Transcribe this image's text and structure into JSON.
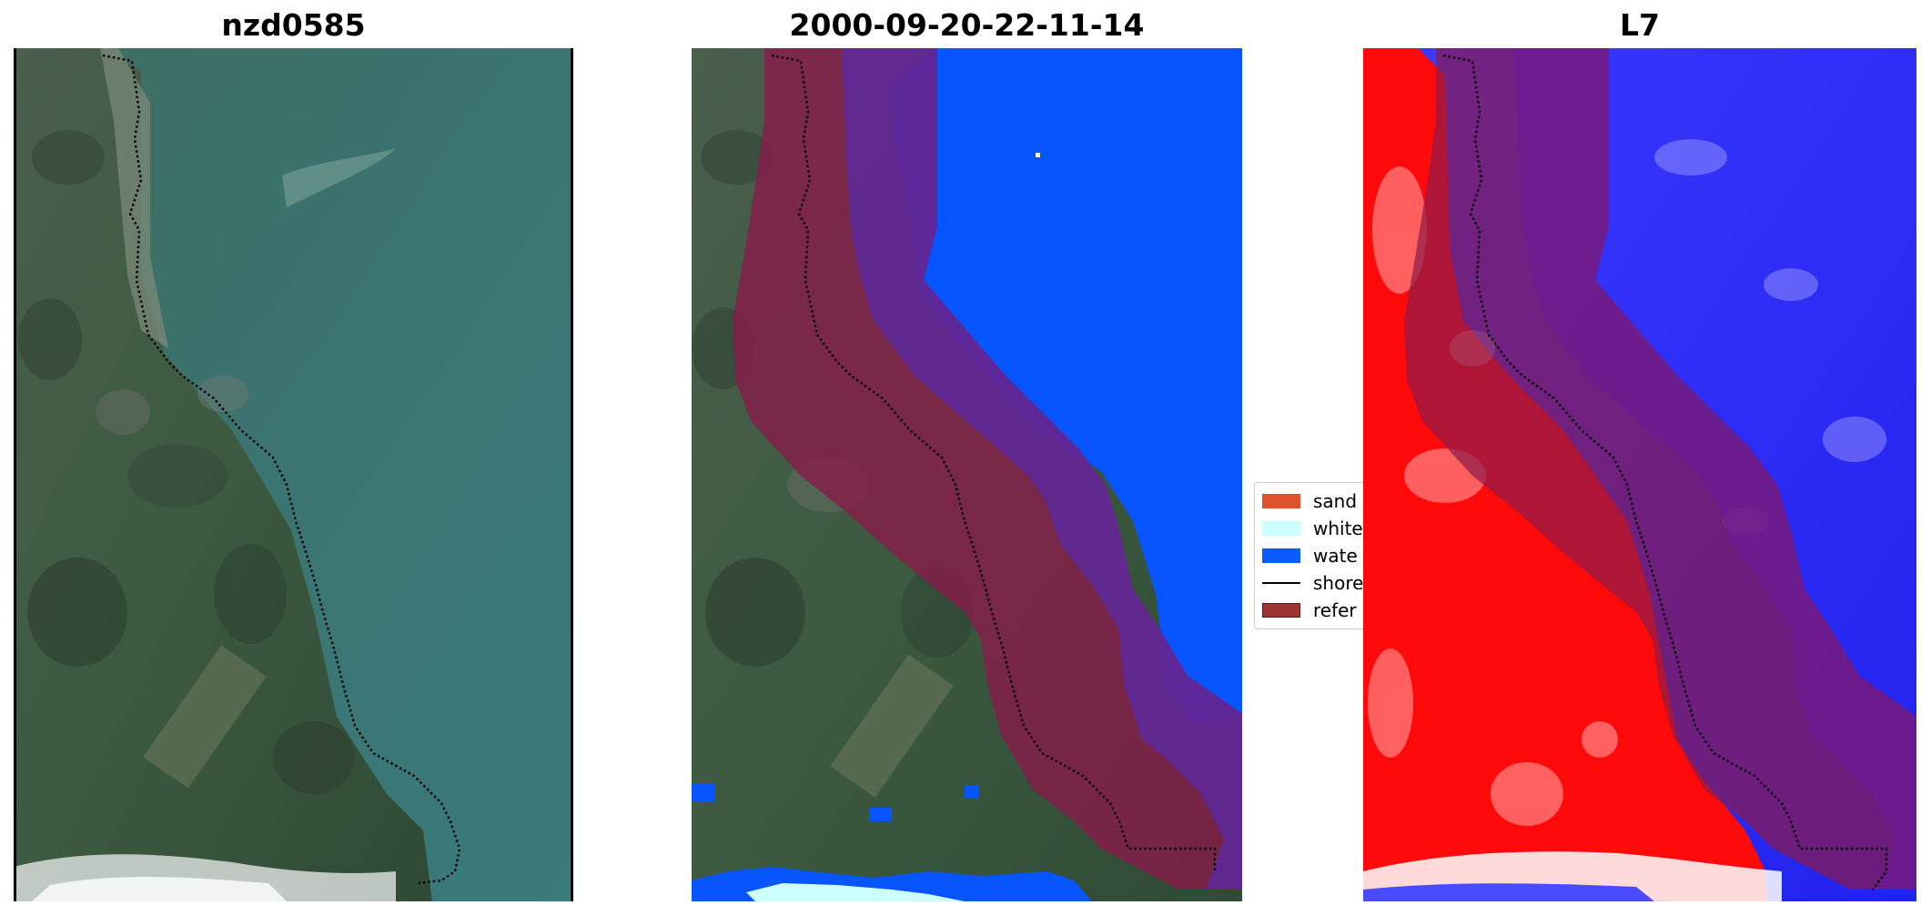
{
  "panels": [
    {
      "title": "nzd0585"
    },
    {
      "title": "2000-09-20-22-11-14"
    },
    {
      "title": "L7"
    }
  ],
  "legend": {
    "items": [
      {
        "label": "sand",
        "kind": "patch",
        "color": "#e0522e"
      },
      {
        "label": "white",
        "kind": "patch",
        "color": "#ccffff"
      },
      {
        "label": "wate",
        "kind": "patch",
        "color": "#0a5cff"
      },
      {
        "label": "shore",
        "kind": "line",
        "color": "#000000"
      },
      {
        "label": "refer",
        "kind": "patch",
        "color": "#9e3535"
      }
    ]
  },
  "colors": {
    "water_class": "#0655ff",
    "white_water_class": "#ccffff",
    "reference_band": "#8b1a4a",
    "shoreline": "#000000",
    "land_index": "#ff0a0a",
    "water_index": "#2020ff"
  }
}
